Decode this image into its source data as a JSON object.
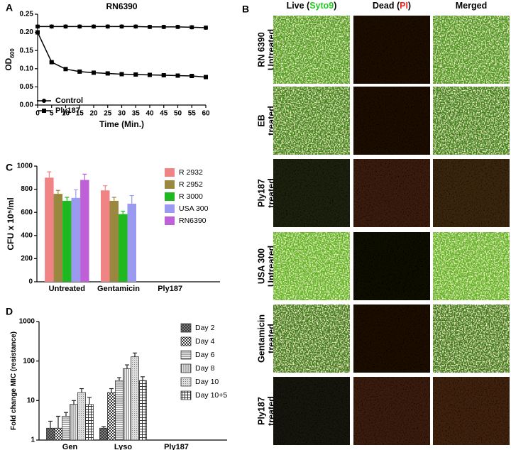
{
  "chart_data": [
    {
      "panel_label": "A",
      "type": "line",
      "title": "RN6390",
      "x_label": "Time (Min.)",
      "y_label": "OD",
      "y_label_sub": "600",
      "x": [
        0,
        5,
        10,
        15,
        20,
        25,
        30,
        35,
        40,
        45,
        50,
        55,
        60
      ],
      "xlim": [
        0,
        60
      ],
      "xticks": [
        0,
        5,
        10,
        15,
        20,
        25,
        30,
        35,
        40,
        45,
        50,
        55,
        60
      ],
      "ylim": [
        0,
        0.25
      ],
      "yticks": [
        {
          "value": 0,
          "label": "0.00"
        },
        {
          "value": 0.05,
          "label": "0.05"
        },
        {
          "value": 0.1,
          "label": "0.10"
        },
        {
          "value": 0.15,
          "label": "0.15"
        },
        {
          "value": 0.2,
          "label": "0.20"
        },
        {
          "value": 0.25,
          "label": "0.25"
        }
      ],
      "legend": "lower left",
      "series": [
        {
          "name": "Control",
          "color": "#000000",
          "marker": "circle",
          "values": [
            0.216,
            0.216,
            0.216,
            0.216,
            0.216,
            0.216,
            0.216,
            0.216,
            0.215,
            0.215,
            0.215,
            0.214,
            0.213
          ],
          "errors": [
            0.004,
            0.004,
            0.004,
            0.004,
            0.004,
            0.004,
            0.004,
            0.004,
            0.004,
            0.004,
            0.004,
            0.004,
            0.004
          ]
        },
        {
          "name": "Ply187",
          "color": "#000000",
          "marker": "square",
          "values": [
            0.2,
            0.118,
            0.099,
            0.092,
            0.089,
            0.087,
            0.085,
            0.084,
            0.083,
            0.082,
            0.081,
            0.08,
            0.077
          ],
          "errors": [
            0.002,
            0.002,
            0.002,
            0.002,
            0.002,
            0.002,
            0.002,
            0.002,
            0.002,
            0.002,
            0.002,
            0.002,
            0.002
          ]
        }
      ]
    },
    {
      "panel_label": "C",
      "type": "bar",
      "y_label": "CFU x 10⁵/ml",
      "categories": [
        "Untreated",
        "Gentamicin",
        "Ply187"
      ],
      "ylim": [
        0,
        1000
      ],
      "yticks": [
        0,
        200,
        400,
        600,
        800,
        1000
      ],
      "legend": "upper right",
      "series": [
        {
          "name": "R 2932",
          "color": "#f08484",
          "values": [
            900,
            790,
            0
          ],
          "errors": [
            50,
            40,
            0
          ]
        },
        {
          "name": "R 2952",
          "color": "#9a8840",
          "values": [
            760,
            700,
            0
          ],
          "errors": [
            30,
            30,
            0
          ]
        },
        {
          "name": "R 3000",
          "color": "#20b820",
          "values": [
            700,
            585,
            0
          ],
          "errors": [
            30,
            25,
            0
          ]
        },
        {
          "name": "USA 300",
          "color": "#9a9af0",
          "values": [
            725,
            675,
            0
          ],
          "errors": [
            70,
            70,
            0
          ]
        },
        {
          "name": "RN6390",
          "color": "#c060d8",
          "values": [
            880,
            null,
            0
          ],
          "errors": [
            50,
            null,
            0
          ]
        }
      ]
    },
    {
      "panel_label": "D",
      "type": "bar",
      "log_scale": true,
      "y_label": "Fold change MIC (resistance)",
      "categories": [
        "Gen",
        "Lyso",
        "Ply187"
      ],
      "ylim": [
        1,
        1000
      ],
      "yticks": [
        1,
        10,
        100,
        1000
      ],
      "legend": "upper right",
      "series": [
        {
          "name": "Day 2",
          "color": "#555555",
          "pattern": "crosshatch",
          "values": [
            2,
            2,
            null
          ],
          "errors": [
            1,
            0.2,
            null
          ]
        },
        {
          "name": "Day 4",
          "color": "#333333",
          "pattern": "checker",
          "values": [
            2,
            16,
            null
          ],
          "errors": [
            2,
            4,
            null
          ]
        },
        {
          "name": "Day 6",
          "color": "#666666",
          "pattern": "horizontal",
          "values": [
            4,
            32,
            null
          ],
          "errors": [
            1,
            6,
            null
          ]
        },
        {
          "name": "Day 8",
          "color": "#666666",
          "pattern": "vertical",
          "values": [
            8,
            64,
            null
          ],
          "errors": [
            2,
            16,
            null
          ]
        },
        {
          "name": "Day 10",
          "color": "#aaaaaa",
          "pattern": "dots",
          "values": [
            16,
            128,
            null
          ],
          "errors": [
            4,
            32,
            null
          ]
        },
        {
          "name": "Day 10+5",
          "color": "#444444",
          "pattern": "grid",
          "values": [
            8,
            32,
            null
          ],
          "errors": [
            4,
            8,
            null
          ]
        }
      ]
    }
  ],
  "panel_b": {
    "panel_label": "B",
    "column_headers": [
      {
        "prefix": "Live (",
        "stain": "Syto9",
        "suffix": ")",
        "stain_color": "#22cc22"
      },
      {
        "prefix": "Dead (",
        "stain": "PI",
        "suffix": ")",
        "stain_color": "#ee2222"
      },
      {
        "prefix": "Merged"
      }
    ],
    "rows": [
      {
        "line1": "RN 6390",
        "line1_color": "#2a2ad0",
        "line2": "Untreated"
      },
      {
        "line1": "EB",
        "line1_color": "#000000",
        "line2": "treated"
      },
      {
        "line1": "Ply187",
        "line1_color": "#000000",
        "line2": "treated"
      },
      {
        "line1": "USA 300",
        "line1_color": "#2a2ad0",
        "line2": "Untreated"
      },
      {
        "line1": "Gentamicin",
        "line1_color": "#000000",
        "line2": "treated"
      },
      {
        "line1": "Ply187",
        "line1_color": "#000000",
        "line2": "treated"
      }
    ]
  }
}
